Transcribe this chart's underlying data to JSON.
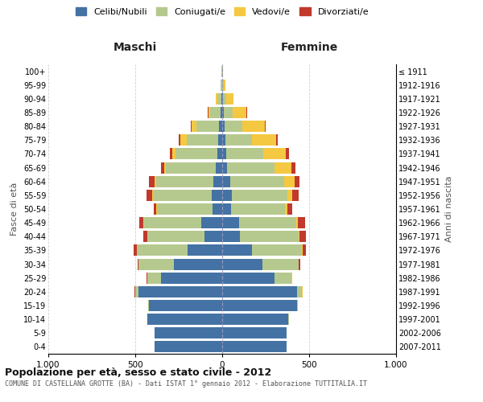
{
  "age_groups": [
    "0-4",
    "5-9",
    "10-14",
    "15-19",
    "20-24",
    "25-29",
    "30-34",
    "35-39",
    "40-44",
    "45-49",
    "50-54",
    "55-59",
    "60-64",
    "65-69",
    "70-74",
    "75-79",
    "80-84",
    "85-89",
    "90-94",
    "95-99",
    "100+"
  ],
  "birth_years": [
    "2007-2011",
    "2002-2006",
    "1997-2001",
    "1992-1996",
    "1987-1991",
    "1982-1986",
    "1977-1981",
    "1972-1976",
    "1967-1971",
    "1962-1966",
    "1957-1961",
    "1952-1956",
    "1947-1951",
    "1942-1946",
    "1937-1941",
    "1932-1936",
    "1927-1931",
    "1922-1926",
    "1917-1921",
    "1912-1916",
    "≤ 1911"
  ],
  "males": {
    "celibi": [
      390,
      390,
      430,
      420,
      480,
      350,
      280,
      200,
      100,
      120,
      55,
      60,
      50,
      35,
      30,
      25,
      20,
      10,
      5,
      2,
      2
    ],
    "coniugati": [
      0,
      0,
      2,
      5,
      20,
      80,
      200,
      290,
      330,
      330,
      320,
      340,
      330,
      290,
      240,
      180,
      130,
      60,
      25,
      5,
      2
    ],
    "vedovi": [
      0,
      0,
      0,
      0,
      2,
      2,
      2,
      2,
      2,
      2,
      5,
      5,
      10,
      10,
      15,
      35,
      25,
      10,
      5,
      2,
      0
    ],
    "divorziati": [
      0,
      0,
      0,
      0,
      2,
      2,
      5,
      15,
      20,
      25,
      15,
      30,
      30,
      15,
      15,
      10,
      5,
      2,
      0,
      0,
      0
    ]
  },
  "females": {
    "nubili": [
      370,
      370,
      380,
      430,
      430,
      300,
      230,
      170,
      100,
      95,
      50,
      55,
      45,
      30,
      25,
      20,
      15,
      10,
      5,
      2,
      2
    ],
    "coniugate": [
      0,
      0,
      2,
      5,
      30,
      100,
      210,
      290,
      340,
      330,
      310,
      320,
      310,
      270,
      210,
      150,
      100,
      50,
      20,
      5,
      2
    ],
    "vedove": [
      0,
      0,
      0,
      0,
      2,
      2,
      2,
      3,
      5,
      10,
      15,
      30,
      60,
      100,
      130,
      140,
      130,
      80,
      40,
      10,
      2
    ],
    "divorziate": [
      0,
      0,
      0,
      0,
      2,
      2,
      5,
      20,
      35,
      40,
      30,
      35,
      30,
      20,
      20,
      10,
      5,
      2,
      0,
      0,
      0
    ]
  },
  "colors": {
    "celibi": "#4472a4",
    "coniugati": "#b5c98e",
    "vedovi": "#f5c842",
    "divorziati": "#c0392b"
  },
  "title": "Popolazione per età, sesso e stato civile - 2012",
  "subtitle": "COMUNE DI CASTELLANA GROTTE (BA) - Dati ISTAT 1° gennaio 2012 - Elaborazione TUTTITALIA.IT",
  "xlabel_left": "Maschi",
  "xlabel_right": "Femmine",
  "ylabel_left": "Fasce di età",
  "ylabel_right": "Anni di nascita",
  "xlim": 1000,
  "legend_labels": [
    "Celibi/Nubili",
    "Coniugati/e",
    "Vedovi/e",
    "Divorziati/e"
  ],
  "background_color": "#ffffff",
  "grid_color": "#bbbbbb"
}
